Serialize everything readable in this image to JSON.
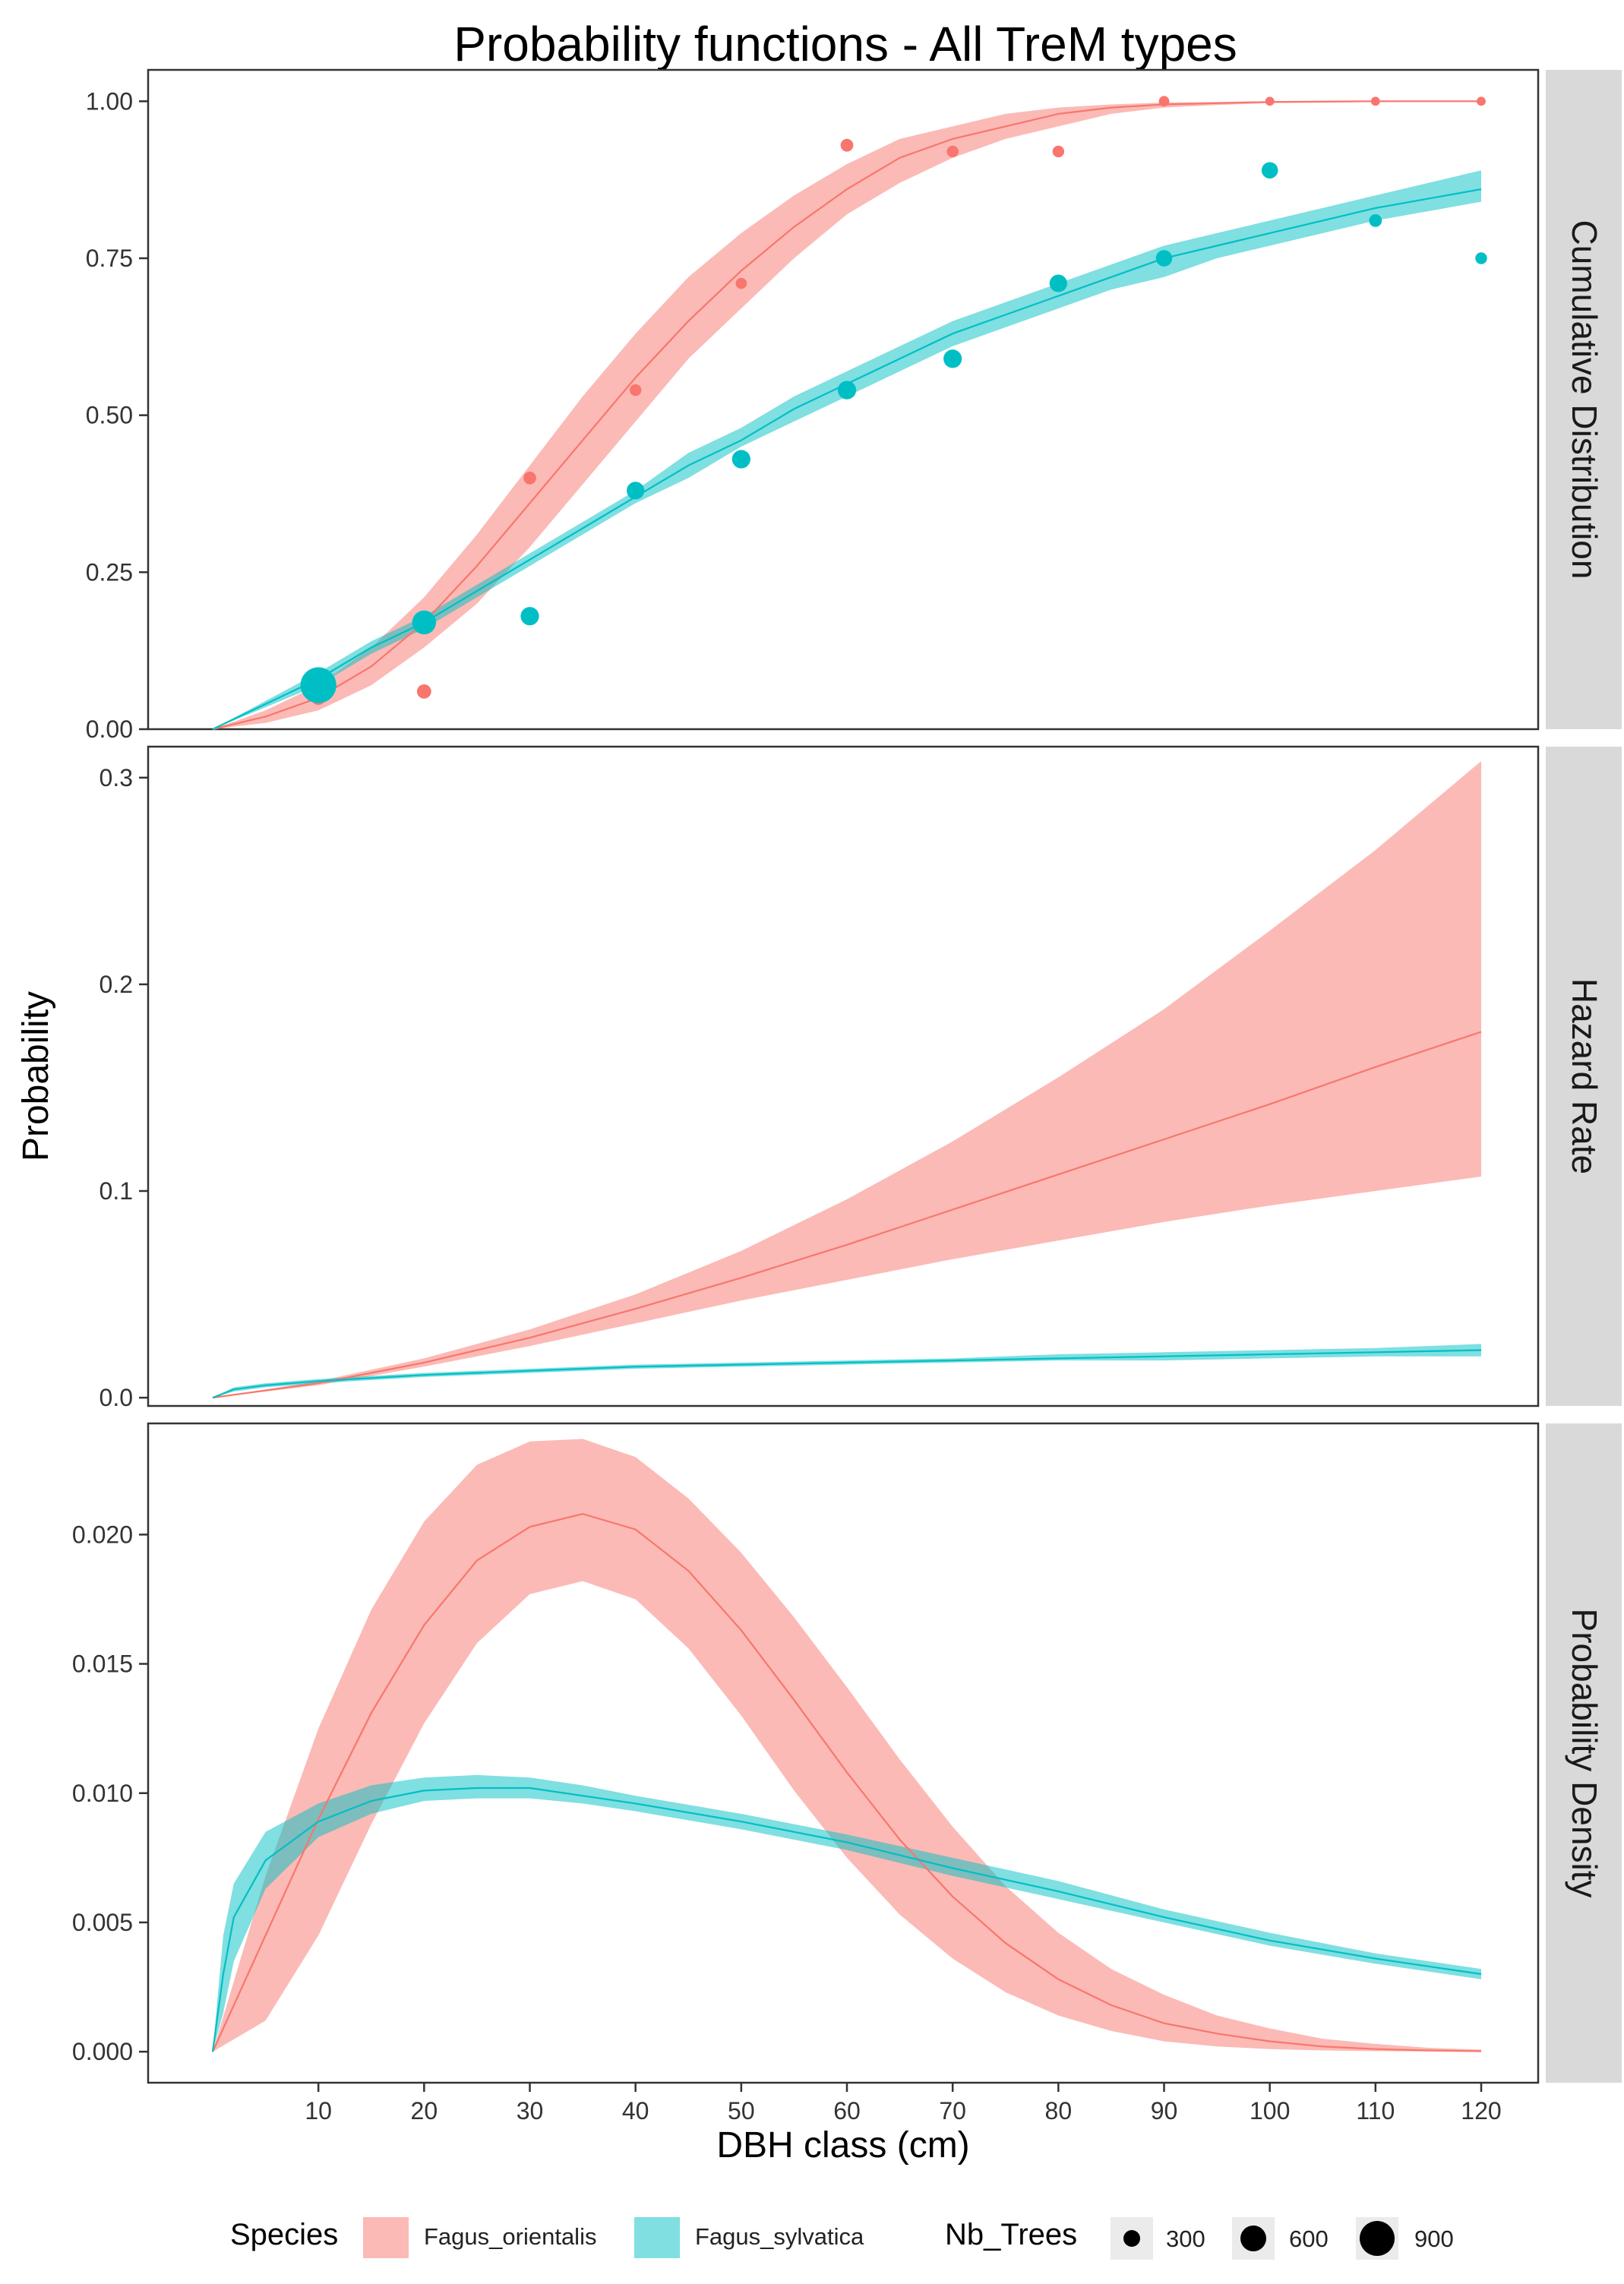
{
  "chart_data": {
    "type": "line",
    "title": "Probability functions - All TreM types",
    "xlabel": "DBH class (cm)",
    "ylabel": "Probability",
    "x_ticks": [
      10,
      20,
      30,
      40,
      50,
      60,
      70,
      80,
      90,
      100,
      110,
      120
    ],
    "xlim": [
      0,
      120
    ],
    "colors": {
      "Fagus_orientalis": "#F8766D",
      "Fagus_sylvatica": "#00BFC4"
    },
    "panels": [
      {
        "name": "Cumulative Distribution",
        "ylim": [
          0,
          1.05
        ],
        "y_ticks": [
          0,
          0.25,
          0.5,
          0.75,
          1
        ],
        "y_tick_labels": [
          "0.00",
          "0.25",
          "0.50",
          "0.75",
          "1.00"
        ],
        "series": [
          {
            "name": "Fagus_orientalis",
            "x": [
              0,
              5,
              10,
              15,
              20,
              25,
              30,
              35,
              40,
              45,
              50,
              55,
              60,
              65,
              70,
              75,
              80,
              85,
              90,
              95,
              100,
              110,
              120
            ],
            "y": [
              0,
              0.02,
              0.05,
              0.1,
              0.17,
              0.26,
              0.36,
              0.46,
              0.56,
              0.65,
              0.73,
              0.8,
              0.86,
              0.91,
              0.94,
              0.96,
              0.98,
              0.99,
              0.995,
              0.997,
              0.999,
              1,
              1
            ],
            "lower": [
              0,
              0.01,
              0.03,
              0.07,
              0.13,
              0.2,
              0.29,
              0.39,
              0.49,
              0.59,
              0.67,
              0.75,
              0.82,
              0.87,
              0.91,
              0.94,
              0.96,
              0.98,
              0.99,
              0.994,
              0.997,
              0.999,
              1
            ],
            "upper": [
              0,
              0.03,
              0.07,
              0.13,
              0.21,
              0.31,
              0.42,
              0.53,
              0.63,
              0.72,
              0.79,
              0.85,
              0.9,
              0.94,
              0.96,
              0.98,
              0.99,
              0.995,
              0.998,
              0.999,
              1,
              1,
              1
            ],
            "points": [
              {
                "x": 10,
                "y": 0.05,
                "trees": 150
              },
              {
                "x": 20,
                "y": 0.06,
                "trees": 150
              },
              {
                "x": 30,
                "y": 0.4,
                "trees": 120
              },
              {
                "x": 40,
                "y": 0.54,
                "trees": 100
              },
              {
                "x": 50,
                "y": 0.71,
                "trees": 90
              },
              {
                "x": 60,
                "y": 0.93,
                "trees": 120
              },
              {
                "x": 70,
                "y": 0.92,
                "trees": 100
              },
              {
                "x": 80,
                "y": 0.92,
                "trees": 100
              },
              {
                "x": 90,
                "y": 1,
                "trees": 80
              },
              {
                "x": 100,
                "y": 1,
                "trees": 60
              },
              {
                "x": 110,
                "y": 1,
                "trees": 60
              },
              {
                "x": 120,
                "y": 1,
                "trees": 60
              }
            ]
          },
          {
            "name": "Fagus_sylvatica",
            "x": [
              0,
              5,
              10,
              15,
              20,
              25,
              30,
              35,
              40,
              45,
              50,
              55,
              60,
              65,
              70,
              75,
              80,
              85,
              90,
              95,
              100,
              110,
              120
            ],
            "y": [
              0,
              0.04,
              0.08,
              0.13,
              0.17,
              0.22,
              0.27,
              0.32,
              0.37,
              0.42,
              0.46,
              0.51,
              0.55,
              0.59,
              0.63,
              0.66,
              0.69,
              0.72,
              0.75,
              0.77,
              0.79,
              0.83,
              0.86
            ],
            "lower": [
              0,
              0.035,
              0.07,
              0.12,
              0.16,
              0.21,
              0.26,
              0.31,
              0.36,
              0.4,
              0.45,
              0.49,
              0.53,
              0.57,
              0.61,
              0.64,
              0.67,
              0.7,
              0.72,
              0.75,
              0.77,
              0.81,
              0.84
            ],
            "upper": [
              0,
              0.045,
              0.09,
              0.14,
              0.18,
              0.23,
              0.28,
              0.33,
              0.38,
              0.44,
              0.48,
              0.53,
              0.57,
              0.61,
              0.65,
              0.68,
              0.71,
              0.74,
              0.77,
              0.79,
              0.81,
              0.85,
              0.89
            ],
            "points": [
              {
                "x": 10,
                "y": 0.07,
                "trees": 950
              },
              {
                "x": 20,
                "y": 0.17,
                "trees": 420
              },
              {
                "x": 30,
                "y": 0.18,
                "trees": 250
              },
              {
                "x": 40,
                "y": 0.38,
                "trees": 230
              },
              {
                "x": 50,
                "y": 0.43,
                "trees": 250
              },
              {
                "x": 60,
                "y": 0.54,
                "trees": 250
              },
              {
                "x": 70,
                "y": 0.59,
                "trees": 250
              },
              {
                "x": 80,
                "y": 0.71,
                "trees": 230
              },
              {
                "x": 90,
                "y": 0.75,
                "trees": 200
              },
              {
                "x": 100,
                "y": 0.89,
                "trees": 200
              },
              {
                "x": 110,
                "y": 0.81,
                "trees": 120
              },
              {
                "x": 120,
                "y": 0.75,
                "trees": 100
              }
            ]
          }
        ]
      },
      {
        "name": "Hazard Rate",
        "ylim": [
          -0.004,
          0.315
        ],
        "y_ticks": [
          0,
          0.1,
          0.2,
          0.3
        ],
        "y_tick_labels": [
          "0.0",
          "0.1",
          "0.2",
          "0.3"
        ],
        "series": [
          {
            "name": "Fagus_orientalis",
            "x": [
              0,
              10,
              20,
              30,
              40,
              50,
              60,
              70,
              80,
              90,
              100,
              110,
              120
            ],
            "y": [
              0,
              0.007,
              0.017,
              0.029,
              0.043,
              0.058,
              0.074,
              0.091,
              0.108,
              0.125,
              0.142,
              0.16,
              0.177
            ],
            "lower": [
              0,
              0.006,
              0.015,
              0.025,
              0.036,
              0.047,
              0.057,
              0.067,
              0.076,
              0.085,
              0.093,
              0.1,
              0.107
            ],
            "upper": [
              0,
              0.008,
              0.019,
              0.033,
              0.05,
              0.071,
              0.096,
              0.124,
              0.155,
              0.188,
              0.226,
              0.265,
              0.308
            ]
          },
          {
            "name": "Fagus_sylvatica",
            "x": [
              0,
              2,
              5,
              10,
              20,
              30,
              40,
              50,
              60,
              70,
              80,
              90,
              100,
              110,
              120
            ],
            "y": [
              0,
              0.004,
              0.006,
              0.008,
              0.011,
              0.013,
              0.015,
              0.016,
              0.017,
              0.018,
              0.019,
              0.02,
              0.021,
              0.022,
              0.023
            ],
            "lower": [
              0,
              0.003,
              0.005,
              0.007,
              0.01,
              0.012,
              0.014,
              0.015,
              0.016,
              0.017,
              0.018,
              0.018,
              0.019,
              0.02,
              0.02
            ],
            "upper": [
              0,
              0.005,
              0.007,
              0.009,
              0.012,
              0.014,
              0.016,
              0.017,
              0.018,
              0.019,
              0.021,
              0.022,
              0.023,
              0.024,
              0.026
            ]
          }
        ]
      },
      {
        "name": "Probability Density",
        "ylim": [
          -0.0012,
          0.0243
        ],
        "y_ticks": [
          0,
          0.005,
          0.01,
          0.015,
          0.02
        ],
        "y_tick_labels": [
          "0.000",
          "0.005",
          "0.010",
          "0.015",
          "0.020"
        ],
        "series": [
          {
            "name": "Fagus_orientalis",
            "x": [
              0,
              5,
              10,
              15,
              20,
              25,
              30,
              35,
              40,
              45,
              50,
              55,
              60,
              65,
              70,
              75,
              80,
              85,
              90,
              95,
              100,
              105,
              110,
              115,
              120
            ],
            "y": [
              0,
              0.0045,
              0.009,
              0.0131,
              0.0165,
              0.019,
              0.0203,
              0.0208,
              0.0202,
              0.0186,
              0.0163,
              0.0136,
              0.0108,
              0.0082,
              0.006,
              0.0042,
              0.0028,
              0.0018,
              0.0011,
              0.0007,
              0.0004,
              0.0002,
              0.0001,
              5e-05,
              2e-05
            ],
            "lower": [
              0,
              0.0012,
              0.0045,
              0.0088,
              0.0127,
              0.0158,
              0.0177,
              0.0182,
              0.0175,
              0.0156,
              0.013,
              0.0101,
              0.0075,
              0.0053,
              0.0036,
              0.0023,
              0.0014,
              0.0008,
              0.0004,
              0.0002,
              0.0001,
              5e-05,
              2e-05,
              1e-05,
              0
            ],
            "upper": [
              0,
              0.0068,
              0.0125,
              0.0171,
              0.0205,
              0.0227,
              0.0236,
              0.0237,
              0.023,
              0.0214,
              0.0193,
              0.0168,
              0.0141,
              0.0113,
              0.0087,
              0.0064,
              0.0046,
              0.0032,
              0.0022,
              0.0014,
              0.0009,
              0.0005,
              0.0003,
              0.00015,
              8e-05
            ]
          },
          {
            "name": "Fagus_sylvatica",
            "x": [
              0,
              1,
              2,
              5,
              10,
              15,
              20,
              25,
              30,
              35,
              40,
              50,
              60,
              70,
              80,
              90,
              100,
              110,
              120
            ],
            "y": [
              0,
              0.003,
              0.0052,
              0.0074,
              0.0089,
              0.0097,
              0.0101,
              0.0102,
              0.0102,
              0.0099,
              0.0096,
              0.0089,
              0.0081,
              0.0071,
              0.0062,
              0.0052,
              0.0043,
              0.0036,
              0.003
            ],
            "lower": [
              0,
              0.0015,
              0.0035,
              0.0063,
              0.0083,
              0.0092,
              0.0097,
              0.0098,
              0.0098,
              0.0096,
              0.0093,
              0.0086,
              0.0078,
              0.0068,
              0.0059,
              0.005,
              0.0041,
              0.0034,
              0.0028
            ],
            "upper": [
              0,
              0.0045,
              0.0065,
              0.0085,
              0.0096,
              0.0103,
              0.0106,
              0.0107,
              0.0106,
              0.0103,
              0.0099,
              0.0092,
              0.0084,
              0.0075,
              0.0066,
              0.0055,
              0.0046,
              0.0038,
              0.0032
            ]
          }
        ]
      }
    ],
    "legend": {
      "placement": "bottom",
      "species_title": "Species",
      "species": [
        "Fagus_orientalis",
        "Fagus_sylvatica"
      ],
      "size_title": "Nb_Trees",
      "sizes": [
        {
          "label": "300",
          "value": 300
        },
        {
          "label": "600",
          "value": 600
        },
        {
          "label": "900",
          "value": 900
        }
      ]
    }
  }
}
